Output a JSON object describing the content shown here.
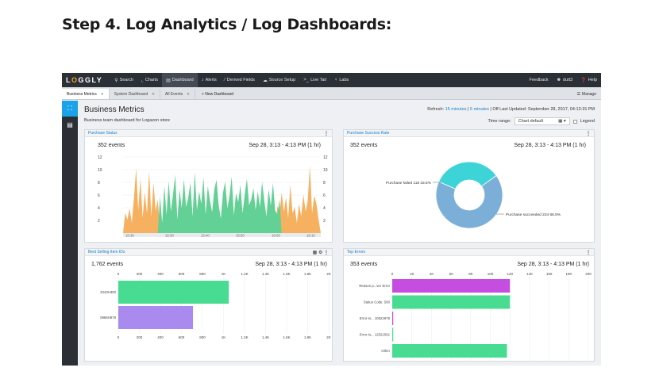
{
  "article": {
    "title": "Step 4. Log Analytics / Log Dashboards:"
  },
  "topnav": {
    "logo_pre": "L",
    "logo_o": "O",
    "logo_post": "GGLY",
    "items": [
      {
        "label": "Search",
        "icon": "search-icon"
      },
      {
        "label": "Charts",
        "icon": "chart-icon"
      },
      {
        "label": "Dashboard",
        "icon": "dashboard-icon"
      },
      {
        "label": "Alerts",
        "icon": "bell-icon"
      },
      {
        "label": "Derived Fields",
        "icon": "wand-icon"
      },
      {
        "label": "Source Setup",
        "icon": "cloud-icon"
      },
      {
        "label": "Live Tail",
        "icon": "terminal-icon"
      },
      {
        "label": "Labs",
        "icon": "lightbulb-icon"
      }
    ],
    "feedback": "Feedback",
    "user": "dutt3",
    "help": "Help"
  },
  "tabs": {
    "items": [
      {
        "label": "Business Metrics"
      },
      {
        "label": "System Dashboard"
      },
      {
        "label": "All Events"
      }
    ],
    "new_label": "+ New Dashboard",
    "manage_label": "Manage"
  },
  "dashboard": {
    "title": "Business Metrics",
    "description": "Business team dashboard for Logazon store",
    "refresh_prefix": "Refresh:",
    "refresh_15": "15 minutes",
    "refresh_5": "5 minutes",
    "refresh_off": "Off",
    "last_updated": "Last Updated: September 28, 2017, 04:13:15 PM",
    "time_range_label": "Time range:",
    "time_range_value": "Chart default",
    "legend_label": "Legend"
  },
  "panels": {
    "purchase_status": {
      "title": "Purchase Status",
      "count": "352 events",
      "range": "Sep 28, 3:13 - 4:13 PM (1 hr)"
    },
    "purchase_success": {
      "title": "Purchase Success Rate",
      "count": "352 events",
      "range": "Sep 28, 3:13 - 4:13 PM (1 hr)"
    },
    "best_selling": {
      "title": "Best Selling Item IDs",
      "count": "1,762 events",
      "range": "Sep 28, 3:13 - 4:13 PM (1 hr)"
    },
    "top_errors": {
      "title": "Top Errors",
      "count": "353 events",
      "range": "Sep 28, 3:13 - 4:13 PM (1 hr)"
    }
  },
  "chart_data": [
    {
      "type": "area",
      "title": "Purchase Status",
      "ylim": [
        0,
        12
      ],
      "yticks": [
        2,
        4,
        6,
        8,
        10,
        12
      ],
      "xticks": [
        "15:30",
        "15:30",
        "15:40",
        "15:50",
        "16:00",
        "16:10"
      ],
      "series": [
        {
          "name": "",
          "color": "#f5b15f",
          "values": [
            0,
            3.2,
            2.1,
            3.9,
            1.6,
            5.4,
            10.2,
            3.6,
            8.6,
            2.4,
            6.4,
            3.1,
            9.8,
            2.6,
            7.9,
            3.5,
            5.3,
            0.4,
            0.2,
            0,
            0,
            0,
            0,
            0,
            0,
            0,
            0,
            0,
            0,
            0,
            0,
            0,
            0,
            0,
            0,
            0,
            0,
            0,
            0,
            0,
            0,
            0,
            0,
            0,
            0,
            0,
            0,
            0,
            0,
            0,
            0,
            0,
            0,
            0,
            0,
            0,
            0,
            0,
            0,
            0,
            0,
            0,
            0,
            0,
            0,
            0,
            0,
            0,
            0,
            0,
            0,
            4.3,
            2.9,
            6.4,
            3.4,
            5.6,
            2.3,
            7.6,
            3.1,
            4.1,
            1.6,
            4.6,
            2.6,
            6.1,
            3.4,
            5.1,
            10.6,
            3.1,
            5.9,
            4.6,
            2.1,
            0
          ]
        },
        {
          "name": "",
          "color": "#63d095",
          "values": [
            0,
            0,
            0,
            0,
            0,
            0,
            0,
            0,
            0,
            0,
            0,
            0,
            0,
            0,
            0,
            0,
            0,
            5.8,
            1.6,
            7.4,
            2.9,
            8.2,
            3.4,
            6.1,
            9.2,
            2.1,
            6.9,
            3.9,
            8.5,
            4.1,
            5.6,
            7.9,
            2.6,
            9.6,
            3.6,
            6.6,
            4.6,
            8.8,
            2.9,
            7.4,
            5.1,
            3.3,
            6.9,
            8.4,
            4.4,
            2.3,
            6.4,
            8.1,
            3.9,
            5.9,
            8.9,
            2.8,
            6.3,
            4.9,
            7.6,
            3.1,
            6.1,
            8.6,
            4.4,
            5.3,
            7.1,
            3.6,
            6.6,
            4.1,
            8.1,
            5.1,
            2.6,
            6.9,
            4.3,
            7.9,
            3.6,
            2.9,
            5.3,
            0,
            0,
            0,
            0,
            0,
            0,
            0,
            0,
            0,
            0,
            0,
            0,
            0,
            0,
            0,
            0,
            0,
            0,
            0
          ]
        }
      ]
    },
    {
      "type": "pie",
      "title": "Purchase Success Rate",
      "slices": [
        {
          "label": "Purchase failed 118 33.5%",
          "value": 118,
          "percent": 33.5,
          "color": "#3dd4d8"
        },
        {
          "label": "Purchase succeeded 234 66.5%",
          "value": 234,
          "percent": 66.5,
          "color": "#7bafd8"
        }
      ]
    },
    {
      "type": "bar",
      "title": "Best Selling Item IDs",
      "orientation": "horizontal",
      "categories": [
        "2343H300",
        "0986H878"
      ],
      "values": [
        1050,
        710
      ],
      "colors": [
        "#48dc93",
        "#a98aef"
      ],
      "xlim": [
        0,
        2000
      ],
      "xticks": [
        "0",
        "200",
        "400",
        "600",
        "800",
        "1K",
        "1.2K",
        "1.4K",
        "1.6K",
        "1.8K",
        "2K"
      ]
    },
    {
      "type": "bar",
      "title": "Top Errors",
      "orientation": "horizontal",
      "categories": [
        "Reason p...ver Error",
        "Status Code: 500",
        "Error-Is... 10622978",
        "Error-Is... 12521561",
        "Other"
      ],
      "values": [
        120,
        120,
        1,
        1,
        117
      ],
      "colors": [
        "#c54ee0",
        "#48dc93",
        "#c54ee0",
        "#48dc93",
        "#48dc93"
      ],
      "xlim": [
        0,
        200
      ],
      "xticks": [
        "0",
        "20",
        "40",
        "60",
        "80",
        "100",
        "120",
        "140",
        "160",
        "180",
        "200"
      ]
    }
  ]
}
